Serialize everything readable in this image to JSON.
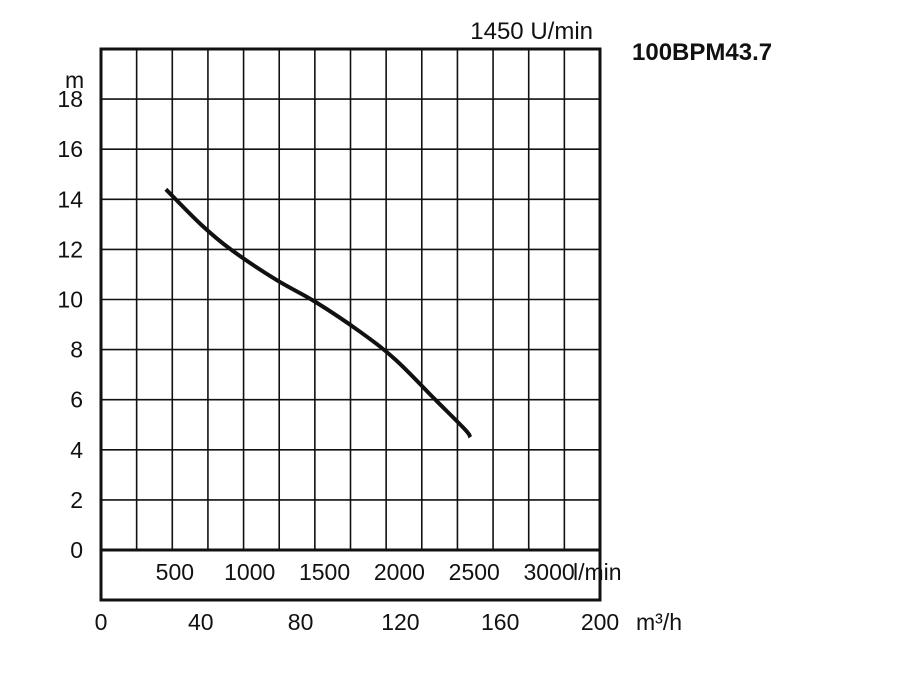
{
  "chart_data": {
    "type": "line",
    "model": "100BPM43.7",
    "speed_label": "1450 U/min",
    "ylabel": "m",
    "xlabel": "m³/h",
    "secondary_xlabel": "l/min",
    "ylim": [
      0,
      20
    ],
    "xlim": [
      0,
      200
    ],
    "grid": true,
    "y_ticks": [
      "0",
      "2",
      "4",
      "6",
      "8",
      "10",
      "12",
      "14",
      "16",
      "18"
    ],
    "x_ticks": [
      "0",
      "40",
      "80",
      "120",
      "160",
      "200"
    ],
    "secondary_x_ticks": [
      "500",
      "1000",
      "1500",
      "2000",
      "2500",
      "3000"
    ],
    "series": [
      {
        "x": [
          26,
          40,
          52,
          70,
          86,
          104,
          118,
          134,
          146,
          148
        ],
        "y": [
          14.4,
          13.0,
          12.0,
          10.8,
          9.9,
          8.7,
          7.6,
          6.0,
          4.8,
          4.5
        ]
      }
    ],
    "colors": {
      "line": "#111111",
      "grid": "#111111",
      "background": "#ffffff"
    }
  }
}
